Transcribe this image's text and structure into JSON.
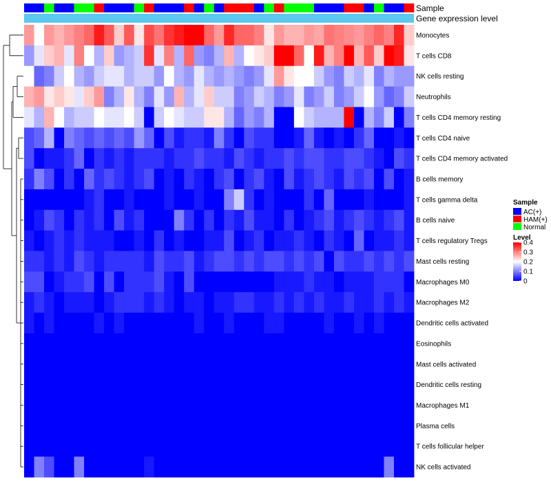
{
  "chart_data": {
    "type": "heatmap",
    "annotations": {
      "sample_label": "Sample",
      "expression_label": "Gene expression level",
      "expression_color": "#5bc8ef"
    },
    "sample_groups": [
      "AC(+)",
      "AC(+)",
      "Normal",
      "AC(+)",
      "AC(+)",
      "Normal",
      "Normal",
      "HAM(+)",
      "AC(+)",
      "AC(+)",
      "AC(+)",
      "Normal",
      "HAM(+)",
      "AC(+)",
      "AC(+)",
      "AC(+)",
      "HAM(+)",
      "AC(+)",
      "Normal",
      "AC(+)",
      "HAM(+)",
      "HAM(+)",
      "HAM(+)",
      "AC(+)",
      "Normal",
      "HAM(+)",
      "Normal",
      "Normal",
      "Normal",
      "AC(+)",
      "AC(+)",
      "AC(+)",
      "HAM(+)",
      "HAM(+)",
      "AC(+)",
      "Normal",
      "AC(+)",
      "AC(+)",
      "HAM(+)"
    ],
    "rows": [
      {
        "name": "Monocytes",
        "values": [
          0.28,
          0.2,
          0.28,
          0.26,
          0.28,
          0.3,
          0.32,
          0.38,
          0.33,
          0.24,
          0.33,
          0.22,
          0.34,
          0.31,
          0.36,
          0.38,
          0.4,
          0.4,
          0.32,
          0.28,
          0.37,
          0.32,
          0.32,
          0.3,
          0.22,
          0.28,
          0.26,
          0.26,
          0.28,
          0.27,
          0.31,
          0.3,
          0.29,
          0.28,
          0.3,
          0.32,
          0.3,
          0.37,
          0.24
        ]
      },
      {
        "name": "T cells CD8",
        "values": [
          0.12,
          0.18,
          0.24,
          0.26,
          0.18,
          0.3,
          0.2,
          0.14,
          0.24,
          0.12,
          0.14,
          0.16,
          0.36,
          0.18,
          0.3,
          0.14,
          0.32,
          0.12,
          0.1,
          0.14,
          0.26,
          0.14,
          0.2,
          0.22,
          0.24,
          0.4,
          0.4,
          0.32,
          0.2,
          0.38,
          0.26,
          0.3,
          0.4,
          0.26,
          0.33,
          0.24,
          0.4,
          0.38,
          0.22
        ]
      },
      {
        "name": "NK cells resting",
        "values": [
          0.2,
          0.08,
          0.1,
          0.16,
          0.2,
          0.14,
          0.12,
          0.16,
          0.18,
          0.18,
          0.14,
          0.16,
          0.16,
          0.12,
          0.2,
          0.14,
          0.12,
          0.18,
          0.14,
          0.12,
          0.14,
          0.12,
          0.1,
          0.12,
          0.18,
          0.28,
          0.22,
          0.2,
          0.2,
          0.16,
          0.12,
          0.1,
          0.16,
          0.14,
          0.18,
          0.1,
          0.14,
          0.12,
          0.12
        ]
      },
      {
        "name": "Neutrophils",
        "values": [
          0.26,
          0.28,
          0.22,
          0.24,
          0.22,
          0.18,
          0.24,
          0.28,
          0.1,
          0.14,
          0.22,
          0.14,
          0.1,
          0.18,
          0.12,
          0.26,
          0.14,
          0.18,
          0.24,
          0.16,
          0.16,
          0.1,
          0.12,
          0.16,
          0.14,
          0.1,
          0.12,
          0.18,
          0.1,
          0.12,
          0.16,
          0.1,
          0.12,
          0.16,
          0.2,
          0.12,
          0.08,
          0.1,
          0.16
        ]
      },
      {
        "name": "T cells CD4 memory resting",
        "values": [
          0.18,
          0.14,
          0.26,
          0.2,
          0.14,
          0.16,
          0.16,
          0.2,
          0.18,
          0.18,
          0.2,
          0.16,
          0.0,
          0.16,
          0.2,
          0.18,
          0.16,
          0.16,
          0.22,
          0.22,
          0.14,
          0.08,
          0.12,
          0.1,
          0.14,
          0.0,
          0.0,
          0.2,
          0.16,
          0.14,
          0.14,
          0.14,
          0.4,
          0.0,
          0.14,
          0.1,
          0.16,
          0.0,
          0.1
        ]
      },
      {
        "name": "T cells CD4 naive",
        "values": [
          0.06,
          0.08,
          0.14,
          0.0,
          0.1,
          0.08,
          0.06,
          0.08,
          0.06,
          0.08,
          0.06,
          0.12,
          0.08,
          0.0,
          0.06,
          0.02,
          0.04,
          0.04,
          0.02,
          0.1,
          0.04,
          0.0,
          0.06,
          0.04,
          0.04,
          0.0,
          0.0,
          0.02,
          0.08,
          0.02,
          0.0,
          0.02,
          0.0,
          0.04,
          0.08,
          0.0,
          0.0,
          0.02,
          0.0
        ]
      },
      {
        "name": "T cells CD4 memory activated",
        "values": [
          0.06,
          0.0,
          0.02,
          0.02,
          0.04,
          0.08,
          0.0,
          0.04,
          0.02,
          0.04,
          0.02,
          0.04,
          0.04,
          0.04,
          0.02,
          0.04,
          0.04,
          0.06,
          0.04,
          0.04,
          0.02,
          0.06,
          0.04,
          0.02,
          0.04,
          0.04,
          0.06,
          0.04,
          0.06,
          0.06,
          0.04,
          0.04,
          0.06,
          0.06,
          0.04,
          0.02,
          0.0,
          0.06,
          0.04
        ]
      },
      {
        "name": "B cells memory",
        "values": [
          0.04,
          0.1,
          0.06,
          0.0,
          0.04,
          0.0,
          0.08,
          0.04,
          0.06,
          0.04,
          0.02,
          0.04,
          0.06,
          0.0,
          0.02,
          0.0,
          0.04,
          0.02,
          0.0,
          0.04,
          0.06,
          0.0,
          0.04,
          0.06,
          0.02,
          0.0,
          0.06,
          0.02,
          0.04,
          0.06,
          0.04,
          0.02,
          0.06,
          0.04,
          0.06,
          0.0,
          0.06,
          0.0,
          0.02
        ]
      },
      {
        "name": "T cells gamma delta",
        "values": [
          0.0,
          0.0,
          0.0,
          0.0,
          0.0,
          0.0,
          0.02,
          0.04,
          0.0,
          0.0,
          0.02,
          0.0,
          0.0,
          0.0,
          0.02,
          0.0,
          0.0,
          0.02,
          0.0,
          0.0,
          0.1,
          0.16,
          0.04,
          0.0,
          0.02,
          0.0,
          0.0,
          0.0,
          0.04,
          0.0,
          0.08,
          0.0,
          0.0,
          0.0,
          0.02,
          0.0,
          0.0,
          0.0,
          0.02
        ]
      },
      {
        "name": "B cells naive",
        "values": [
          0.0,
          0.02,
          0.06,
          0.04,
          0.0,
          0.04,
          0.02,
          0.04,
          0.0,
          0.06,
          0.02,
          0.04,
          0.0,
          0.0,
          0.0,
          0.1,
          0.04,
          0.0,
          0.04,
          0.0,
          0.04,
          0.02,
          0.06,
          0.02,
          0.02,
          0.0,
          0.04,
          0.0,
          0.02,
          0.04,
          0.06,
          0.02,
          0.04,
          0.06,
          0.04,
          0.02,
          0.04,
          0.06,
          0.02
        ]
      },
      {
        "name": "T cells regulatory  Tregs",
        "values": [
          0.02,
          0.0,
          0.02,
          0.04,
          0.02,
          0.04,
          0.02,
          0.02,
          0.02,
          0.0,
          0.0,
          0.02,
          0.0,
          0.04,
          0.0,
          0.02,
          0.0,
          0.0,
          0.02,
          0.02,
          0.06,
          0.0,
          0.02,
          0.04,
          0.0,
          0.02,
          0.02,
          0.04,
          0.02,
          0.0,
          0.04,
          0.02,
          0.0,
          0.08,
          0.0,
          0.02,
          0.02,
          0.04,
          0.02
        ]
      },
      {
        "name": "Mast cells resting",
        "values": [
          0.04,
          0.04,
          0.02,
          0.04,
          0.02,
          0.06,
          0.04,
          0.02,
          0.04,
          0.04,
          0.04,
          0.04,
          0.02,
          0.06,
          0.04,
          0.04,
          0.06,
          0.02,
          0.04,
          0.06,
          0.06,
          0.04,
          0.06,
          0.04,
          0.06,
          0.06,
          0.04,
          0.06,
          0.04,
          0.06,
          0.0,
          0.06,
          0.04,
          0.04,
          0.06,
          0.04,
          0.06,
          0.04,
          0.06
        ]
      },
      {
        "name": "Macrophages M0",
        "values": [
          0.06,
          0.06,
          0.0,
          0.02,
          0.04,
          0.04,
          0.06,
          0.0,
          0.06,
          0.0,
          0.04,
          0.04,
          0.04,
          0.06,
          0.02,
          0.0,
          0.06,
          0.0,
          0.0,
          0.0,
          0.0,
          0.0,
          0.0,
          0.0,
          0.0,
          0.02,
          0.02,
          0.02,
          0.04,
          0.02,
          0.02,
          0.0,
          0.02,
          0.02,
          0.02,
          0.04,
          0.04,
          0.04,
          0.0
        ]
      },
      {
        "name": "Macrophages M2",
        "values": [
          0.02,
          0.04,
          0.02,
          0.0,
          0.02,
          0.02,
          0.02,
          0.0,
          0.02,
          0.04,
          0.04,
          0.04,
          0.02,
          0.04,
          0.02,
          0.0,
          0.02,
          0.02,
          0.0,
          0.02,
          0.02,
          0.04,
          0.04,
          0.02,
          0.02,
          0.04,
          0.02,
          0.04,
          0.02,
          0.04,
          0.02,
          0.02,
          0.04,
          0.02,
          0.02,
          0.04,
          0.02,
          0.04,
          0.02
        ]
      },
      {
        "name": "Dendritic cells activated",
        "values": [
          0.02,
          0.0,
          0.02,
          0.0,
          0.0,
          0.0,
          0.0,
          0.02,
          0.0,
          0.02,
          0.0,
          0.0,
          0.0,
          0.0,
          0.0,
          0.0,
          0.0,
          0.02,
          0.0,
          0.0,
          0.02,
          0.0,
          0.0,
          0.0,
          0.02,
          0.02,
          0.0,
          0.0,
          0.0,
          0.0,
          0.02,
          0.0,
          0.0,
          0.02,
          0.0,
          0.02,
          0.0,
          0.0,
          0.0
        ]
      },
      {
        "name": "Eosinophils",
        "values": [
          0,
          0,
          0,
          0,
          0,
          0,
          0,
          0,
          0,
          0,
          0,
          0,
          0,
          0,
          0,
          0,
          0,
          0,
          0,
          0,
          0,
          0,
          0,
          0,
          0,
          0,
          0,
          0,
          0,
          0,
          0,
          0,
          0,
          0,
          0,
          0,
          0,
          0,
          0
        ]
      },
      {
        "name": "Mast cells activated",
        "values": [
          0,
          0,
          0,
          0,
          0,
          0,
          0,
          0,
          0,
          0,
          0,
          0,
          0,
          0,
          0,
          0,
          0,
          0,
          0,
          0,
          0,
          0,
          0,
          0,
          0,
          0,
          0,
          0,
          0,
          0,
          0,
          0,
          0,
          0,
          0,
          0,
          0,
          0,
          0
        ]
      },
      {
        "name": "Dendritic cells resting",
        "values": [
          0,
          0,
          0,
          0,
          0,
          0,
          0,
          0,
          0,
          0,
          0,
          0,
          0,
          0,
          0,
          0,
          0,
          0,
          0,
          0,
          0,
          0,
          0,
          0,
          0,
          0,
          0,
          0,
          0,
          0,
          0,
          0,
          0,
          0,
          0,
          0,
          0,
          0,
          0
        ]
      },
      {
        "name": "Macrophages M1",
        "values": [
          0,
          0,
          0,
          0,
          0,
          0,
          0,
          0,
          0,
          0,
          0,
          0,
          0,
          0,
          0,
          0,
          0,
          0,
          0,
          0,
          0,
          0,
          0,
          0,
          0,
          0,
          0,
          0,
          0,
          0,
          0,
          0,
          0,
          0,
          0,
          0,
          0,
          0,
          0
        ]
      },
      {
        "name": "Plasma cells",
        "values": [
          0,
          0,
          0,
          0,
          0,
          0,
          0,
          0,
          0,
          0,
          0,
          0,
          0,
          0,
          0,
          0,
          0,
          0,
          0,
          0,
          0,
          0,
          0,
          0,
          0,
          0,
          0,
          0,
          0,
          0,
          0,
          0,
          0,
          0,
          0,
          0,
          0,
          0,
          0
        ]
      },
      {
        "name": "T cells follicular helper",
        "values": [
          0,
          0,
          0,
          0,
          0,
          0,
          0,
          0,
          0,
          0,
          0,
          0,
          0,
          0,
          0,
          0,
          0,
          0,
          0,
          0,
          0,
          0,
          0,
          0,
          0,
          0,
          0,
          0,
          0,
          0,
          0,
          0,
          0,
          0,
          0,
          0,
          0,
          0,
          0
        ]
      },
      {
        "name": "NK cells activated",
        "values": [
          0.0,
          0.1,
          0.06,
          0.0,
          0.0,
          0.1,
          0.0,
          0.0,
          0.0,
          0.0,
          0.0,
          0.0,
          0.02,
          0.0,
          0.0,
          0.0,
          0.0,
          0.0,
          0.0,
          0.0,
          0.0,
          0.0,
          0.0,
          0.0,
          0.0,
          0.0,
          0.0,
          0.0,
          0.0,
          0.0,
          0.0,
          0.0,
          0.0,
          0.0,
          0.0,
          0.0,
          0.1,
          0.0,
          0.0
        ]
      }
    ],
    "legend": {
      "sample_title": "Sample",
      "sample_entries": [
        {
          "label": "AC(+)",
          "color": "#0000ff"
        },
        {
          "label": "HAM(+)",
          "color": "#ff0000"
        },
        {
          "label": "Normal",
          "color": "#00ff00"
        }
      ],
      "level_title": "Level",
      "level_ticks": [
        "0.4",
        "0.3",
        "0.2",
        "0.1",
        "0"
      ],
      "level_range": [
        0,
        0.4
      ],
      "level_colors": [
        "#0000ff",
        "#ffffff",
        "#ff0000"
      ]
    }
  }
}
